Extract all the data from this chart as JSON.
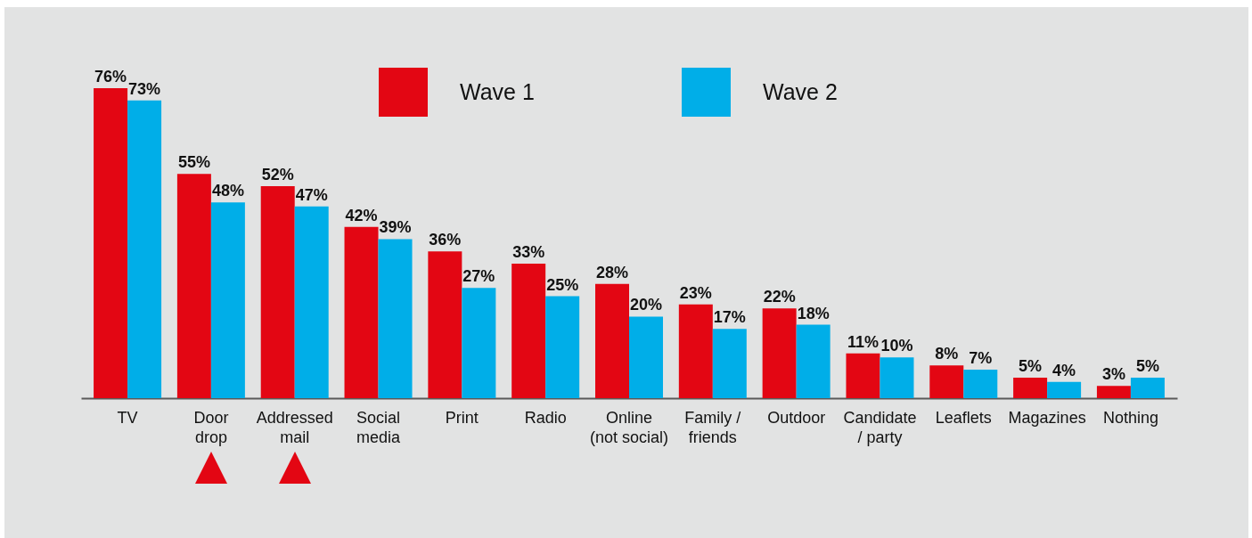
{
  "chart_data": {
    "type": "bar",
    "categories": [
      "TV",
      "Door\ndrop",
      "Addressed\nmail",
      "Social\nmedia",
      "Print",
      "Radio",
      "Online\n(not social)",
      "Family /\nfriends",
      "Outdoor",
      "Candidate\n/ party",
      "Leaflets",
      "Magazines",
      "Nothing"
    ],
    "series": [
      {
        "name": "Wave 1",
        "color": "#e30613",
        "values": [
          76,
          55,
          52,
          42,
          36,
          33,
          28,
          23,
          22,
          11,
          8,
          5,
          3
        ],
        "value_labels": [
          "76%",
          "55%",
          "52%",
          "42%",
          "36%",
          "33%",
          "28%",
          "23%",
          "22%",
          "11%",
          "8%",
          "5%",
          "3%"
        ]
      },
      {
        "name": "Wave 2",
        "color": "#00aee8",
        "values": [
          73,
          48,
          47,
          39,
          27,
          25,
          20,
          17,
          18,
          10,
          7,
          4,
          5
        ],
        "value_labels": [
          "73%",
          "48%",
          "47%",
          "39%",
          "27%",
          "25%",
          "20%",
          "17%",
          "18%",
          "10%",
          "7%",
          "4%",
          "5%"
        ]
      }
    ],
    "legend": "top"
  }
}
